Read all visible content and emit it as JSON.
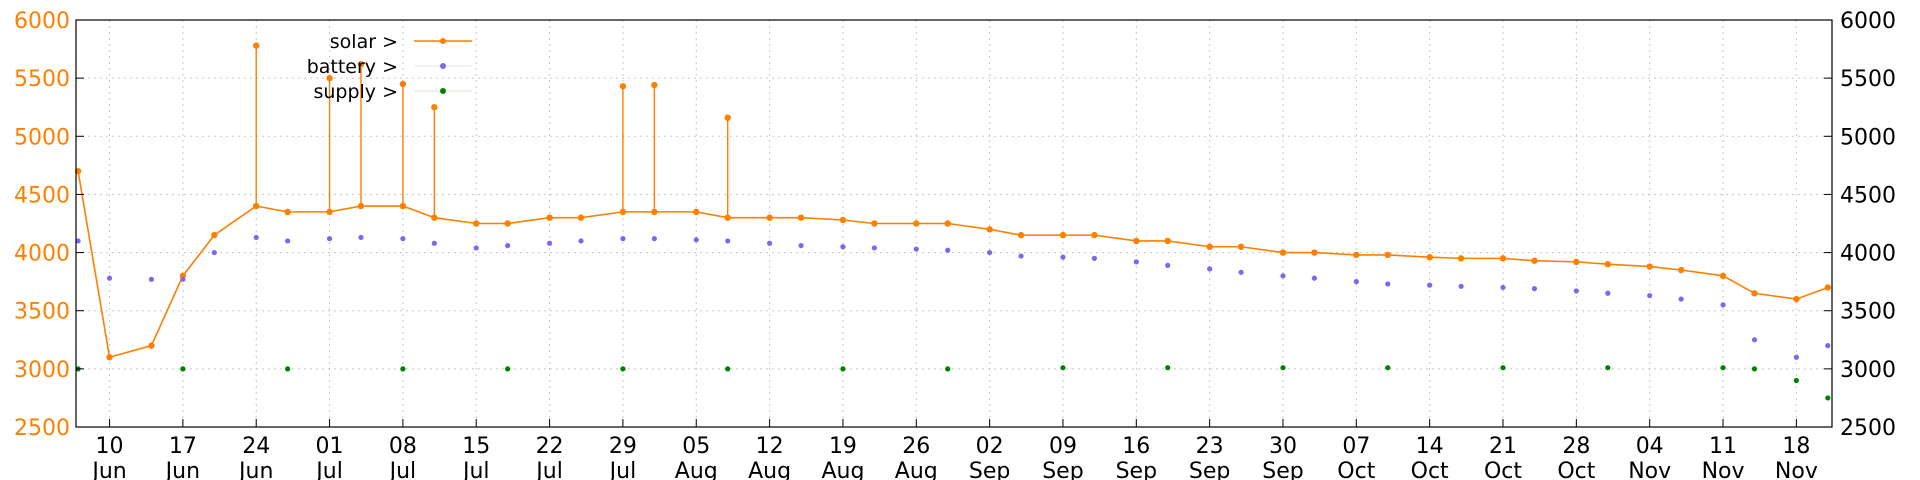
{
  "chart_data": {
    "type": "line",
    "title": "",
    "xlabel": "",
    "ylabel": "",
    "ylim": [
      2500,
      6000
    ],
    "y_ticks": [
      2500,
      3000,
      3500,
      4000,
      4500,
      5000,
      5500,
      6000
    ],
    "y_ticks_right": [
      2500,
      3000,
      3500,
      4000,
      4500,
      5000,
      5500,
      6000
    ],
    "grid": true,
    "legend_position": "top-left",
    "x_ticks": [
      {
        "day": "10",
        "month": "Jun"
      },
      {
        "day": "17",
        "month": "Jun"
      },
      {
        "day": "24",
        "month": "Jun"
      },
      {
        "day": "01",
        "month": "Jul"
      },
      {
        "day": "08",
        "month": "Jul"
      },
      {
        "day": "15",
        "month": "Jul"
      },
      {
        "day": "22",
        "month": "Jul"
      },
      {
        "day": "29",
        "month": "Jul"
      },
      {
        "day": "05",
        "month": "Aug"
      },
      {
        "day": "12",
        "month": "Aug"
      },
      {
        "day": "19",
        "month": "Aug"
      },
      {
        "day": "26",
        "month": "Aug"
      },
      {
        "day": "02",
        "month": "Sep"
      },
      {
        "day": "09",
        "month": "Sep"
      },
      {
        "day": "16",
        "month": "Sep"
      },
      {
        "day": "23",
        "month": "Sep"
      },
      {
        "day": "30",
        "month": "Sep"
      },
      {
        "day": "07",
        "month": "Oct"
      },
      {
        "day": "14",
        "month": "Oct"
      },
      {
        "day": "21",
        "month": "Oct"
      },
      {
        "day": "28",
        "month": "Oct"
      },
      {
        "day": "04",
        "month": "Nov"
      },
      {
        "day": "11",
        "month": "Nov"
      },
      {
        "day": "18",
        "month": "Nov"
      }
    ],
    "series": [
      {
        "name": "solar >",
        "color": "#ff7f00",
        "style": "linespoints",
        "x": [
          "Jun 07",
          "Jun 10",
          "Jun 14",
          "Jun 17",
          "Jun 20",
          "Jun 24",
          "Jun 27",
          "Jul 01",
          "Jul 04",
          "Jul 08",
          "Jul 11",
          "Jul 15",
          "Jul 18",
          "Jul 22",
          "Jul 25",
          "Jul 29",
          "Aug 01",
          "Aug 05",
          "Aug 08",
          "Aug 12",
          "Aug 15",
          "Aug 19",
          "Aug 22",
          "Aug 26",
          "Aug 29",
          "Sep 02",
          "Sep 05",
          "Sep 09",
          "Sep 12",
          "Sep 16",
          "Sep 19",
          "Sep 23",
          "Sep 26",
          "Sep 30",
          "Oct 03",
          "Oct 07",
          "Oct 10",
          "Oct 14",
          "Oct 17",
          "Oct 21",
          "Oct 24",
          "Oct 28",
          "Oct 31",
          "Nov 04",
          "Nov 07",
          "Nov 11",
          "Nov 14",
          "Nov 18",
          "Nov 21"
        ],
        "values": [
          4700,
          3100,
          3200,
          3800,
          4150,
          4400,
          4350,
          4350,
          4400,
          4400,
          4300,
          4250,
          4250,
          4300,
          4300,
          4350,
          4350,
          4350,
          4300,
          4300,
          4300,
          4280,
          4250,
          4250,
          4250,
          4200,
          4150,
          4150,
          4150,
          4100,
          4100,
          4050,
          4050,
          4000,
          4000,
          3980,
          3980,
          3960,
          3950,
          3950,
          3930,
          3920,
          3900,
          3880,
          3850,
          3800,
          3650,
          3600,
          3700
        ],
        "peak_values": [
          {
            "x": "Jun 24",
            "y": 5780
          },
          {
            "x": "Jul 01",
            "y": 5500
          },
          {
            "x": "Jul 04",
            "y": 5620
          },
          {
            "x": "Jul 08",
            "y": 5450
          },
          {
            "x": "Jul 11",
            "y": 5250
          },
          {
            "x": "Jul 29",
            "y": 5430
          },
          {
            "x": "Aug 01",
            "y": 5440
          },
          {
            "x": "Aug 08",
            "y": 5160
          }
        ]
      },
      {
        "name": "battery >",
        "color": "#7b68ee",
        "style": "points",
        "x": [
          "Jun 07",
          "Jun 10",
          "Jun 14",
          "Jun 17",
          "Jun 20",
          "Jun 24",
          "Jun 27",
          "Jul 01",
          "Jul 04",
          "Jul 08",
          "Jul 11",
          "Jul 15",
          "Jul 18",
          "Jul 22",
          "Jul 25",
          "Jul 29",
          "Aug 01",
          "Aug 05",
          "Aug 08",
          "Aug 12",
          "Aug 15",
          "Aug 19",
          "Aug 22",
          "Aug 26",
          "Aug 29",
          "Sep 02",
          "Sep 05",
          "Sep 09",
          "Sep 12",
          "Sep 16",
          "Sep 19",
          "Sep 23",
          "Sep 26",
          "Sep 30",
          "Oct 03",
          "Oct 07",
          "Oct 10",
          "Oct 14",
          "Oct 17",
          "Oct 21",
          "Oct 24",
          "Oct 28",
          "Oct 31",
          "Nov 04",
          "Nov 07",
          "Nov 11",
          "Nov 14",
          "Nov 18",
          "Nov 21"
        ],
        "values": [
          4100,
          3780,
          3770,
          3770,
          4000,
          4130,
          4100,
          4120,
          4130,
          4120,
          4080,
          4040,
          4060,
          4080,
          4100,
          4120,
          4120,
          4110,
          4100,
          4080,
          4060,
          4050,
          4040,
          4030,
          4020,
          4000,
          3970,
          3960,
          3950,
          3920,
          3890,
          3860,
          3830,
          3800,
          3780,
          3750,
          3730,
          3720,
          3710,
          3700,
          3690,
          3670,
          3650,
          3630,
          3600,
          3550,
          3250,
          3100,
          3200
        ]
      },
      {
        "name": "supply >",
        "color": "#008000",
        "style": "points",
        "x": [
          "Jun 07",
          "Jun 17",
          "Jun 27",
          "Jul 08",
          "Jul 18",
          "Jul 29",
          "Aug 08",
          "Aug 19",
          "Aug 29",
          "Sep 09",
          "Sep 19",
          "Sep 30",
          "Oct 10",
          "Oct 21",
          "Oct 31",
          "Nov 11",
          "Nov 14",
          "Nov 18",
          "Nov 21"
        ],
        "values": [
          3000,
          3000,
          3000,
          3000,
          3000,
          3000,
          3000,
          3000,
          3000,
          3010,
          3010,
          3010,
          3010,
          3010,
          3010,
          3010,
          3000,
          2900,
          2750
        ]
      }
    ]
  }
}
